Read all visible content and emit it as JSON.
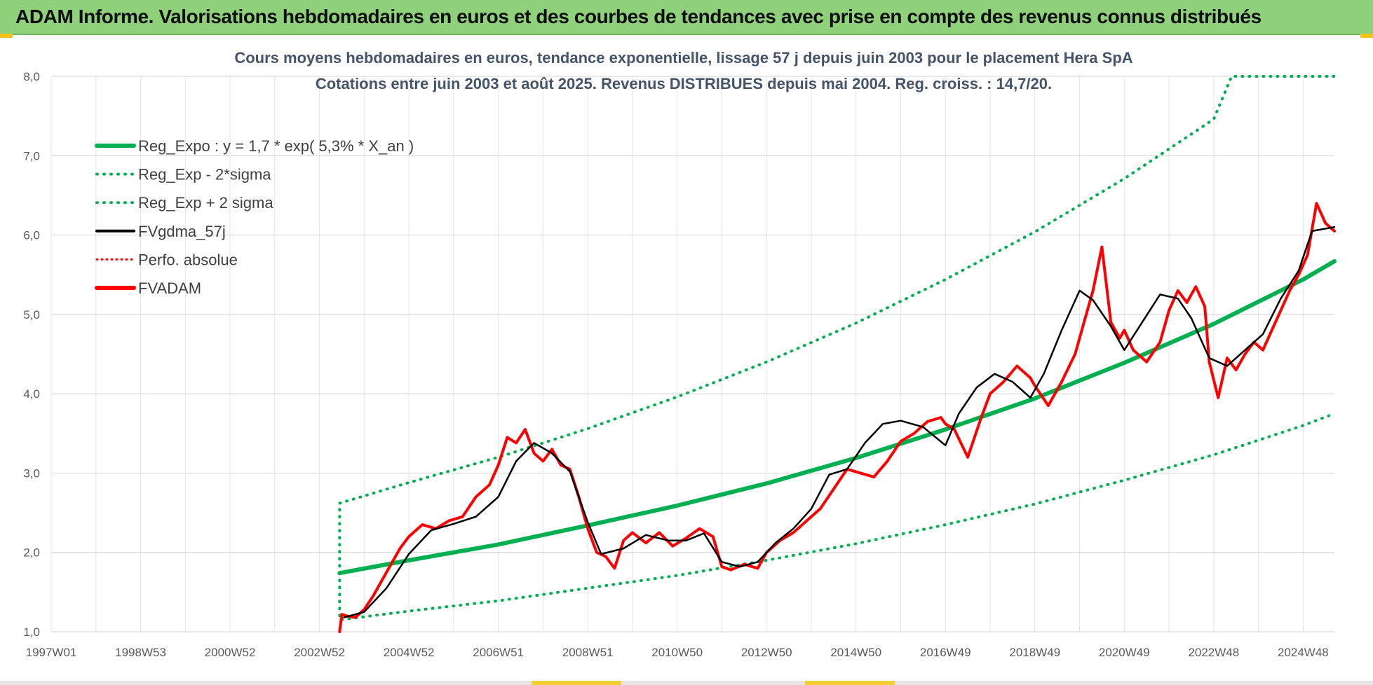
{
  "header": {
    "title": "ADAM Informe. Valorisations hebdomadaires en euros et des courbes de tendances avec prise en compte des revenus connus distribués"
  },
  "colors": {
    "header_bg": "#8fd17b",
    "reg_expo": "#00b050",
    "fvgdma": "#000000",
    "fvadam": "#ff0000",
    "perfo": "#ff0000",
    "grid": "#d9d9d9"
  },
  "chart_data": {
    "type": "line",
    "title": [
      "Cours moyens hebdomadaires en euros, tendance exponentielle, lissage 57 j depuis juin 2003 pour le placement Hera SpA",
      "Cotations entre juin 2003 et août 2025. Revenus DISTRIBUES depuis mai 2004. Reg. croiss. : 14,7/20."
    ],
    "ylim": [
      1.0,
      8.0
    ],
    "y_ticks": [
      "1,0",
      "2,0",
      "3,0",
      "4,0",
      "5,0",
      "6,0",
      "7,0",
      "8,0"
    ],
    "x_range": [
      1997.0,
      2025.7
    ],
    "x_ticks": [
      {
        "label": "1997W01",
        "year": 1997.0
      },
      {
        "label": "1998W53",
        "year": 1999.0
      },
      {
        "label": "2000W52",
        "year": 2001.0
      },
      {
        "label": "2002W52",
        "year": 2003.0
      },
      {
        "label": "2004W52",
        "year": 2005.0
      },
      {
        "label": "2006W51",
        "year": 2007.0
      },
      {
        "label": "2008W51",
        "year": 2009.0
      },
      {
        "label": "2010W50",
        "year": 2011.0
      },
      {
        "label": "2012W50",
        "year": 2013.0
      },
      {
        "label": "2014W50",
        "year": 2015.0
      },
      {
        "label": "2016W49",
        "year": 2017.0
      },
      {
        "label": "2018W49",
        "year": 2019.0
      },
      {
        "label": "2020W49",
        "year": 2021.0
      },
      {
        "label": "2022W48",
        "year": 2023.0
      },
      {
        "label": "2024W48",
        "year": 2025.0
      }
    ],
    "grid": true,
    "legend_position": "top-left",
    "legend": [
      {
        "name": "Reg_Expo : y = 1,7 * exp( 5,3% *  X_an )",
        "style": "solid-thick",
        "color": "#00b050"
      },
      {
        "name": "Reg_Exp - 2*sigma",
        "style": "dotted",
        "color": "#00b050"
      },
      {
        "name": "Reg_Exp + 2 sigma",
        "style": "dotted",
        "color": "#00b050"
      },
      {
        "name": "FVgdma_57j",
        "style": "solid",
        "color": "#000000"
      },
      {
        "name": "Perfo. absolue",
        "style": "dotted-thin",
        "color": "#ff0000"
      },
      {
        "name": "FVADAM",
        "style": "solid-thick",
        "color": "#ff0000"
      }
    ],
    "series": [
      {
        "name": "Reg_Expo : y = 1,7 * exp( 5,3% *  X_an )",
        "x": [
          2003.45,
          2005.0,
          2007.0,
          2009.0,
          2011.0,
          2013.0,
          2015.0,
          2017.0,
          2019.0,
          2021.0,
          2023.0,
          2025.0,
          2025.7
        ],
        "y": [
          1.74,
          1.9,
          2.1,
          2.34,
          2.59,
          2.87,
          3.19,
          3.55,
          3.94,
          4.39,
          4.88,
          5.44,
          5.67
        ]
      },
      {
        "name": "Reg_Exp - 2*sigma",
        "x": [
          2003.45,
          2005.0,
          2007.0,
          2009.0,
          2011.0,
          2013.0,
          2015.0,
          2017.0,
          2019.0,
          2021.0,
          2023.0,
          2025.0,
          2025.7
        ],
        "y": [
          1.15,
          1.26,
          1.39,
          1.55,
          1.71,
          1.9,
          2.11,
          2.35,
          2.61,
          2.91,
          3.23,
          3.6,
          3.75
        ]
      },
      {
        "name": "Reg_Exp + 2 sigma",
        "x": [
          2003.45,
          2005.0,
          2007.0,
          2009.0,
          2011.0,
          2013.0,
          2015.0,
          2017.0,
          2019.0,
          2021.0,
          2023.0,
          2023.4,
          2025.7
        ],
        "y": [
          2.62,
          2.88,
          3.2,
          3.56,
          3.96,
          4.4,
          4.89,
          5.44,
          6.04,
          6.71,
          7.46,
          8.0,
          8.0
        ]
      },
      {
        "name": "FVgdma_57j",
        "x": [
          2003.55,
          2004.0,
          2004.5,
          2005.0,
          2005.5,
          2006.0,
          2006.5,
          2007.0,
          2007.4,
          2007.8,
          2008.2,
          2008.6,
          2009.0,
          2009.3,
          2009.8,
          2010.3,
          2010.8,
          2011.2,
          2011.6,
          2012.0,
          2012.4,
          2012.8,
          2013.2,
          2013.6,
          2014.0,
          2014.4,
          2014.8,
          2015.2,
          2015.6,
          2016.0,
          2016.5,
          2017.0,
          2017.3,
          2017.7,
          2018.1,
          2018.5,
          2018.9,
          2019.2,
          2019.6,
          2020.0,
          2020.3,
          2020.7,
          2021.0,
          2021.4,
          2021.8,
          2022.2,
          2022.5,
          2022.9,
          2023.3,
          2023.7,
          2024.1,
          2024.5,
          2024.9,
          2025.2,
          2025.7
        ],
        "y": [
          1.18,
          1.25,
          1.55,
          1.98,
          2.28,
          2.36,
          2.45,
          2.7,
          3.15,
          3.38,
          3.25,
          3.02,
          2.38,
          1.98,
          2.05,
          2.22,
          2.15,
          2.15,
          2.24,
          1.88,
          1.82,
          1.88,
          2.12,
          2.3,
          2.55,
          2.98,
          3.05,
          3.38,
          3.62,
          3.66,
          3.58,
          3.35,
          3.75,
          4.08,
          4.25,
          4.15,
          3.95,
          4.25,
          4.8,
          5.3,
          5.18,
          4.85,
          4.55,
          4.9,
          5.25,
          5.2,
          4.95,
          4.45,
          4.35,
          4.55,
          4.75,
          5.2,
          5.55,
          6.05,
          6.1
        ]
      },
      {
        "name": "FVADAM",
        "x": [
          2003.45,
          2003.5,
          2003.6,
          2003.8,
          2004.0,
          2004.2,
          2004.5,
          2004.8,
          2005.0,
          2005.3,
          2005.6,
          2005.9,
          2006.2,
          2006.5,
          2006.8,
          2007.0,
          2007.2,
          2007.4,
          2007.6,
          2007.8,
          2008.0,
          2008.2,
          2008.4,
          2008.6,
          2008.8,
          2009.0,
          2009.2,
          2009.4,
          2009.6,
          2009.8,
          2010.0,
          2010.3,
          2010.6,
          2010.9,
          2011.2,
          2011.5,
          2011.8,
          2012.0,
          2012.2,
          2012.5,
          2012.8,
          2013.0,
          2013.3,
          2013.6,
          2013.9,
          2014.2,
          2014.5,
          2014.8,
          2015.1,
          2015.4,
          2015.7,
          2016.0,
          2016.3,
          2016.6,
          2016.9,
          2017.0,
          2017.2,
          2017.5,
          2017.8,
          2018.0,
          2018.3,
          2018.6,
          2018.9,
          2019.0,
          2019.3,
          2019.6,
          2019.9,
          2020.1,
          2020.3,
          2020.5,
          2020.7,
          2020.9,
          2021.0,
          2021.2,
          2021.5,
          2021.8,
          2022.0,
          2022.2,
          2022.4,
          2022.6,
          2022.8,
          2022.9,
          2023.1,
          2023.3,
          2023.5,
          2023.7,
          2023.9,
          2024.1,
          2024.3,
          2024.5,
          2024.7,
          2024.9,
          2025.1,
          2025.3,
          2025.5,
          2025.7
        ],
        "y": [
          1.0,
          1.22,
          1.2,
          1.18,
          1.28,
          1.45,
          1.75,
          2.05,
          2.2,
          2.35,
          2.3,
          2.4,
          2.45,
          2.7,
          2.85,
          3.1,
          3.45,
          3.38,
          3.55,
          3.25,
          3.15,
          3.3,
          3.1,
          3.05,
          2.7,
          2.3,
          2.0,
          1.95,
          1.8,
          2.15,
          2.25,
          2.12,
          2.25,
          2.08,
          2.18,
          2.3,
          2.2,
          1.82,
          1.78,
          1.85,
          1.8,
          2.0,
          2.15,
          2.25,
          2.4,
          2.55,
          2.8,
          3.05,
          3.0,
          2.95,
          3.15,
          3.4,
          3.5,
          3.65,
          3.7,
          3.62,
          3.55,
          3.2,
          3.7,
          4.0,
          4.15,
          4.35,
          4.2,
          4.1,
          3.85,
          4.15,
          4.5,
          4.9,
          5.3,
          5.85,
          4.9,
          4.7,
          4.8,
          4.55,
          4.4,
          4.65,
          5.05,
          5.3,
          5.15,
          5.35,
          5.1,
          4.4,
          3.95,
          4.45,
          4.3,
          4.5,
          4.65,
          4.55,
          4.8,
          5.05,
          5.3,
          5.5,
          5.75,
          6.4,
          6.15,
          6.05
        ]
      }
    ]
  }
}
